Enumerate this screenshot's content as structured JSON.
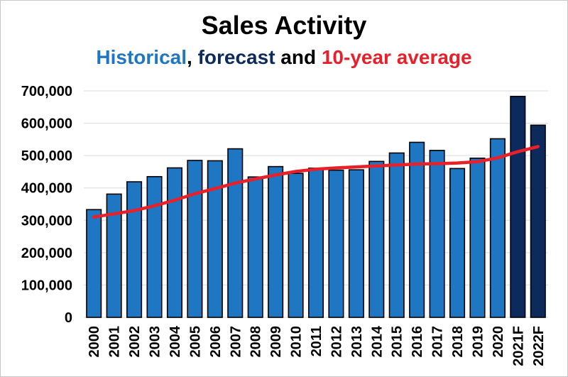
{
  "chart_data": {
    "type": "bar",
    "title": "Sales Activity",
    "subtitle_parts": [
      {
        "text": "Historical",
        "color": "#1f77c4"
      },
      {
        "text": ", ",
        "color": "#000000"
      },
      {
        "text": "forecast",
        "color": "#0d2a5c"
      },
      {
        "text": " and ",
        "color": "#000000"
      },
      {
        "text": "10-year average",
        "color": "#e8202a"
      }
    ],
    "categories": [
      "2000",
      "2001",
      "2002",
      "2003",
      "2004",
      "2005",
      "2006",
      "2007",
      "2008",
      "2009",
      "2010",
      "2011",
      "2012",
      "2013",
      "2014",
      "2015",
      "2016",
      "2017",
      "2018",
      "2019",
      "2020",
      "2021F",
      "2022F"
    ],
    "series": [
      {
        "kind": "bar",
        "values": [
          333000,
          381000,
          419000,
          435000,
          462000,
          485000,
          484000,
          521000,
          434000,
          466000,
          445000,
          461000,
          455000,
          456000,
          482000,
          508000,
          541000,
          516000,
          460000,
          492000,
          552000,
          683000,
          594000
        ],
        "colors": [
          "#1f77c4",
          "#1f77c4",
          "#1f77c4",
          "#1f77c4",
          "#1f77c4",
          "#1f77c4",
          "#1f77c4",
          "#1f77c4",
          "#1f77c4",
          "#1f77c4",
          "#1f77c4",
          "#1f77c4",
          "#1f77c4",
          "#1f77c4",
          "#1f77c4",
          "#1f77c4",
          "#1f77c4",
          "#1f77c4",
          "#1f77c4",
          "#1f77c4",
          "#1f77c4",
          "#0d2a5c",
          "#0d2a5c"
        ]
      },
      {
        "kind": "line",
        "color": "#e8202a",
        "values": [
          310000,
          320000,
          330000,
          345000,
          362000,
          382000,
          398000,
          415000,
          428000,
          440000,
          451000,
          458000,
          462000,
          465000,
          468000,
          471000,
          474000,
          475000,
          477000,
          481000,
          493000,
          512000,
          528000
        ]
      }
    ],
    "ylim": [
      0,
      700000
    ],
    "yticks": [
      0,
      100000,
      200000,
      300000,
      400000,
      500000,
      600000,
      700000
    ],
    "ytick_labels": [
      "0",
      "100,000",
      "200,000",
      "300,000",
      "400,000",
      "500,000",
      "600,000",
      "700,000"
    ],
    "grid": true,
    "legend": "none"
  }
}
